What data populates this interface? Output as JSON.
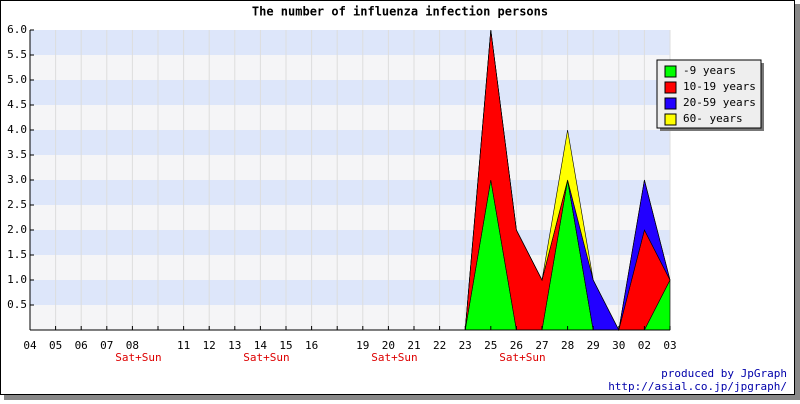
{
  "chart_data": {
    "type": "stacked_area",
    "title": "The number of influenza infection persons",
    "categories": [
      "04",
      "05",
      "06",
      "07",
      "08",
      null,
      "11",
      "12",
      "13",
      "14",
      "15",
      "16",
      null,
      "19",
      "20",
      "21",
      "22",
      "23",
      "25",
      "26",
      "27",
      "28",
      "29",
      "30",
      "02",
      "03"
    ],
    "category_notes": [
      null,
      null,
      null,
      null,
      "Sat+Sun",
      null,
      null,
      null,
      null,
      "Sat+Sun",
      null,
      null,
      null,
      null,
      "Sat+Sun",
      null,
      null,
      null,
      null,
      "Sat+Sun",
      null,
      null,
      null,
      null,
      null,
      null
    ],
    "series": [
      {
        "name": "-9 years",
        "color": "#00ff00",
        "values": [
          0,
          0,
          0,
          0,
          0,
          0,
          0,
          0,
          0,
          0,
          0,
          0,
          0,
          0,
          0,
          0,
          0,
          0,
          3,
          0,
          0,
          3,
          0,
          0,
          0,
          1
        ]
      },
      {
        "name": "10-19 years",
        "color": "#ff0000",
        "values": [
          0,
          0,
          0,
          0,
          0,
          0,
          0,
          0,
          0,
          0,
          0,
          0,
          0,
          0,
          0,
          0,
          0,
          0,
          3,
          2,
          1,
          0,
          0,
          0,
          2,
          0
        ]
      },
      {
        "name": "20-59 years",
        "color": "#2200ff",
        "values": [
          0,
          0,
          0,
          0,
          0,
          0,
          0,
          0,
          0,
          0,
          0,
          0,
          0,
          0,
          0,
          0,
          0,
          0,
          0,
          0,
          0,
          0,
          1,
          0,
          1,
          0
        ]
      },
      {
        "name": "60- years",
        "color": "#ffff00",
        "values": [
          0,
          0,
          0,
          0,
          0,
          0,
          0,
          0,
          0,
          0,
          0,
          0,
          0,
          0,
          0,
          0,
          0,
          0,
          0,
          0,
          0,
          1,
          0,
          0,
          0,
          0
        ]
      }
    ],
    "ylim": [
      0,
      6
    ],
    "yticks": [
      0.5,
      {
        "value": 1,
        "label": "1.0"
      },
      1.5,
      {
        "value": 2,
        "label": "2.0"
      },
      2.5,
      {
        "value": 3,
        "label": "3.0"
      },
      3.5,
      {
        "value": 4,
        "label": "4.0"
      },
      4.5,
      {
        "value": 5,
        "label": "5.0"
      },
      5.5,
      {
        "value": 6,
        "label": "6.0"
      }
    ],
    "grid": true,
    "band_colors": [
      "#f5f5f7",
      "#dde6fa"
    ],
    "legend_position": "upper right",
    "footer": [
      "produced by JpGraph",
      "http://asial.co.jp/jpgraph/"
    ]
  }
}
